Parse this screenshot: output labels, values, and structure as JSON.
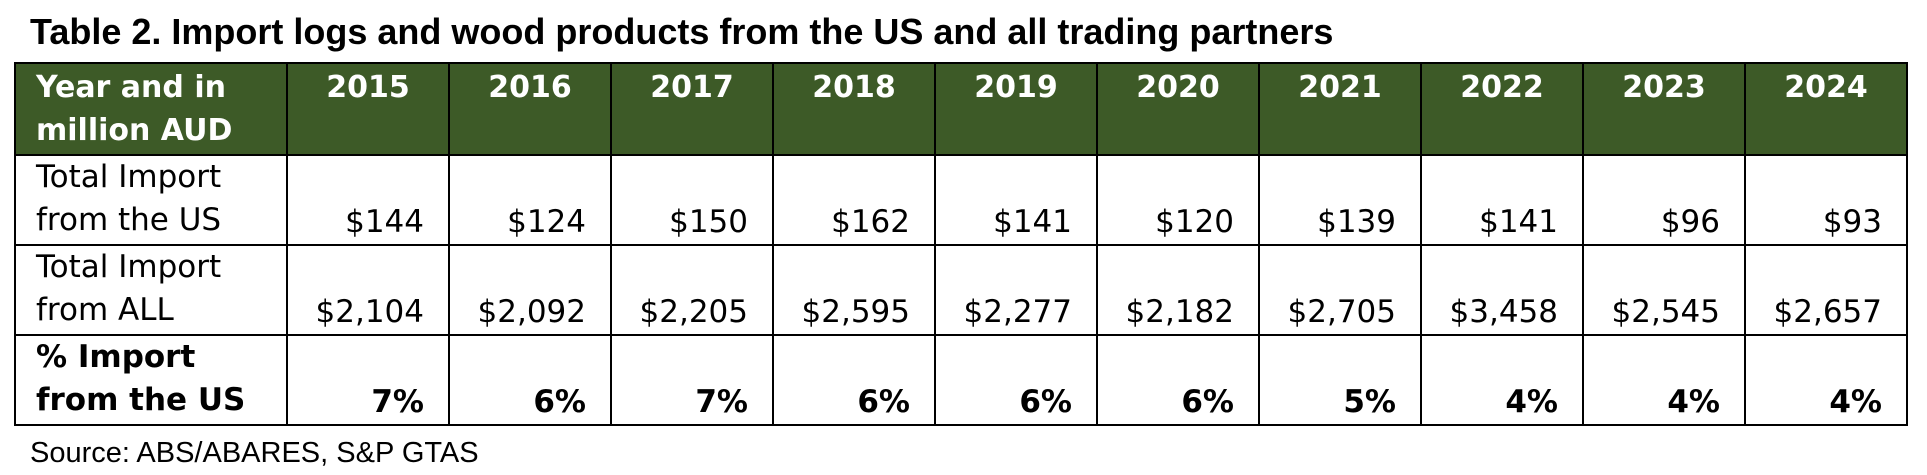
{
  "title": "Table 2. Import logs and wood products from the US and all trading partners",
  "table": {
    "header_label": "Year and in million AUD",
    "years": [
      "2015",
      "2016",
      "2017",
      "2018",
      "2019",
      "2020",
      "2021",
      "2022",
      "2023",
      "2024"
    ],
    "rows": [
      {
        "label": "Total Import from the US",
        "values": [
          "$144",
          "$124",
          "$150",
          "$162",
          "$141",
          "$120",
          "$139",
          "$141",
          "$96",
          "$93"
        ]
      },
      {
        "label": "Total Import from ALL",
        "values": [
          "$2,104",
          "$2,092",
          "$2,205",
          "$2,595",
          "$2,277",
          "$2,182",
          "$2,705",
          "$3,458",
          "$2,545",
          "$2,657"
        ]
      },
      {
        "label": "% Import from the US",
        "values": [
          "7%",
          "6%",
          "7%",
          "6%",
          "6%",
          "6%",
          "5%",
          "4%",
          "4%",
          "4%"
        ]
      }
    ]
  },
  "source": "Source: ABS/ABARES, S&P GTAS",
  "colors": {
    "header_background": "#3d5a27",
    "header_text": "#ffffff",
    "border": "#000000"
  }
}
